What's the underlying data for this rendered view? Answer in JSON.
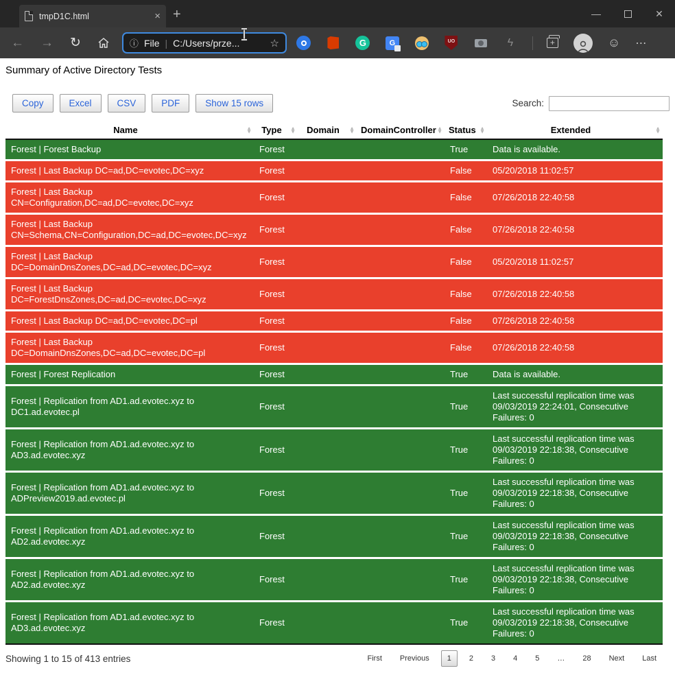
{
  "icons": {
    "back": "←",
    "forward": "→",
    "refresh": "↻",
    "info": "ⓘ",
    "star": "☆",
    "lightning": "ϟ",
    "smiley": "☺",
    "ellipsis": "⋯",
    "plus": "+",
    "tab_close": "×",
    "win_minimize": "—",
    "win_close": "✕",
    "grammarly_glyph": "G",
    "translate_glyph": "G",
    "ublock_glyph": "UO",
    "collections_glyph": "+",
    "sort_up": "▲",
    "sort_down": "▼"
  },
  "browser": {
    "tab_title": "tmpD1C.html",
    "address": {
      "scheme": "File",
      "divider": "|",
      "url": "C:/Users/prze..."
    }
  },
  "page": {
    "title": "Summary of Active Directory Tests",
    "buttons": [
      "Copy",
      "Excel",
      "CSV",
      "PDF",
      "Show 15 rows"
    ],
    "search": {
      "label": "Search:",
      "value": ""
    },
    "table": {
      "headers": [
        "Name",
        "Type",
        "Domain",
        "DomainController",
        "Status",
        "Extended"
      ],
      "rows": [
        {
          "name": "Forest | Forest Backup",
          "type": "Forest",
          "domain": "",
          "domain_controller": "",
          "status": "True",
          "extended": "Data is available.",
          "variant": "success"
        },
        {
          "name": "Forest | Last Backup DC=ad,DC=evotec,DC=xyz",
          "type": "Forest",
          "domain": "",
          "domain_controller": "",
          "status": "False",
          "extended": "05/20/2018 11:02:57",
          "variant": "danger"
        },
        {
          "name": "Forest | Last Backup CN=Configuration,DC=ad,DC=evotec,DC=xyz",
          "type": "Forest",
          "domain": "",
          "domain_controller": "",
          "status": "False",
          "extended": "07/26/2018 22:40:58",
          "variant": "danger"
        },
        {
          "name": "Forest | Last Backup CN=Schema,CN=Configuration,DC=ad,DC=evotec,DC=xyz",
          "type": "Forest",
          "domain": "",
          "domain_controller": "",
          "status": "False",
          "extended": "07/26/2018 22:40:58",
          "variant": "danger"
        },
        {
          "name": "Forest | Last Backup DC=DomainDnsZones,DC=ad,DC=evotec,DC=xyz",
          "type": "Forest",
          "domain": "",
          "domain_controller": "",
          "status": "False",
          "extended": "05/20/2018 11:02:57",
          "variant": "danger"
        },
        {
          "name": "Forest | Last Backup DC=ForestDnsZones,DC=ad,DC=evotec,DC=xyz",
          "type": "Forest",
          "domain": "",
          "domain_controller": "",
          "status": "False",
          "extended": "07/26/2018 22:40:58",
          "variant": "danger"
        },
        {
          "name": "Forest | Last Backup DC=ad,DC=evotec,DC=pl",
          "type": "Forest",
          "domain": "",
          "domain_controller": "",
          "status": "False",
          "extended": "07/26/2018 22:40:58",
          "variant": "danger"
        },
        {
          "name": "Forest | Last Backup DC=DomainDnsZones,DC=ad,DC=evotec,DC=pl",
          "type": "Forest",
          "domain": "",
          "domain_controller": "",
          "status": "False",
          "extended": "07/26/2018 22:40:58",
          "variant": "danger"
        },
        {
          "name": "Forest | Forest Replication",
          "type": "Forest",
          "domain": "",
          "domain_controller": "",
          "status": "True",
          "extended": "Data is available.",
          "variant": "success"
        },
        {
          "name": "Forest | Replication from AD1.ad.evotec.xyz to DC1.ad.evotec.pl",
          "type": "Forest",
          "domain": "",
          "domain_controller": "",
          "status": "True",
          "extended": "Last successful replication time was 09/03/2019 22:24:01, Consecutive Failures: 0",
          "variant": "success"
        },
        {
          "name": "Forest | Replication from AD1.ad.evotec.xyz to AD3.ad.evotec.xyz",
          "type": "Forest",
          "domain": "",
          "domain_controller": "",
          "status": "True",
          "extended": "Last successful replication time was 09/03/2019 22:18:38, Consecutive Failures: 0",
          "variant": "success"
        },
        {
          "name": "Forest | Replication from AD1.ad.evotec.xyz to ADPreview2019.ad.evotec.pl",
          "type": "Forest",
          "domain": "",
          "domain_controller": "",
          "status": "True",
          "extended": "Last successful replication time was 09/03/2019 22:18:38, Consecutive Failures: 0",
          "variant": "success"
        },
        {
          "name": "Forest | Replication from AD1.ad.evotec.xyz to AD2.ad.evotec.xyz",
          "type": "Forest",
          "domain": "",
          "domain_controller": "",
          "status": "True",
          "extended": "Last successful replication time was 09/03/2019 22:18:38, Consecutive Failures: 0",
          "variant": "success"
        },
        {
          "name": "Forest | Replication from AD1.ad.evotec.xyz to AD2.ad.evotec.xyz",
          "type": "Forest",
          "domain": "",
          "domain_controller": "",
          "status": "True",
          "extended": "Last successful replication time was 09/03/2019 22:18:38, Consecutive Failures: 0",
          "variant": "success"
        },
        {
          "name": "Forest | Replication from AD1.ad.evotec.xyz to AD3.ad.evotec.xyz",
          "type": "Forest",
          "domain": "",
          "domain_controller": "",
          "status": "True",
          "extended": "Last successful replication time was 09/03/2019 22:18:38, Consecutive Failures: 0",
          "variant": "success"
        }
      ]
    },
    "footer": {
      "info": "Showing 1 to 15 of 413 entries",
      "pagination": [
        {
          "label": "First",
          "current": false
        },
        {
          "label": "Previous",
          "current": false
        },
        {
          "label": "1",
          "current": true
        },
        {
          "label": "2",
          "current": false
        },
        {
          "label": "3",
          "current": false
        },
        {
          "label": "4",
          "current": false
        },
        {
          "label": "5",
          "current": false
        },
        {
          "label": "…",
          "current": false
        },
        {
          "label": "28",
          "current": false
        },
        {
          "label": "Next",
          "current": false
        },
        {
          "label": "Last",
          "current": false
        }
      ]
    }
  },
  "colors": {
    "success_bg": "#2e7d32",
    "danger_bg": "#e9402c",
    "accent_focus": "#3f8ae0",
    "button_text": "#2b64d9"
  }
}
